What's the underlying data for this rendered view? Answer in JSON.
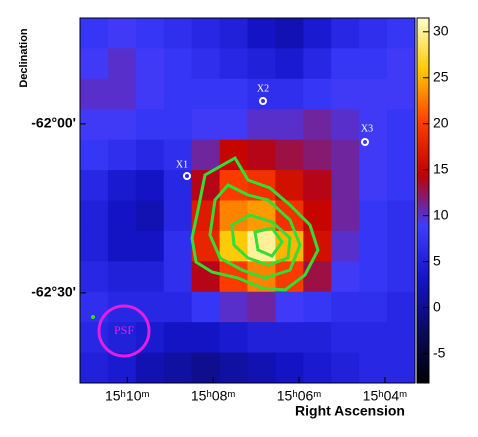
{
  "chart_data": {
    "type": "heatmap",
    "xlabel": "Right Ascension",
    "ylabel": "Declination",
    "xlim": [
      911.1,
      903.3
    ],
    "ylim": [
      -3701.2,
      -3766
    ],
    "xticks": [
      {
        "value": 910,
        "label": "15ʰ10ᵐ"
      },
      {
        "value": 908,
        "label": "15ʰ08ᵐ"
      },
      {
        "value": 906,
        "label": "15ʰ06ᵐ"
      },
      {
        "value": 904,
        "label": "15ʰ04ᵐ"
      }
    ],
    "yticks": [
      {
        "value": -3720,
        "label": "-62°00'"
      },
      {
        "value": -3750,
        "label": "-62°30'"
      }
    ],
    "clim": [
      -8.2,
      31.5
    ],
    "cticks": [
      -5,
      0,
      5,
      10,
      15,
      20,
      25,
      30
    ],
    "colormap": [
      "#000000",
      "#0a0a60",
      "#1414c8",
      "#3c3cff",
      "#c00000",
      "#ff3c00",
      "#ffc800",
      "#ffffd0"
    ],
    "z": [
      [
        8,
        9,
        8,
        7,
        6,
        5,
        3,
        2,
        4,
        6,
        7,
        8
      ],
      [
        9,
        10,
        9,
        8,
        7,
        6,
        5,
        4,
        6,
        8,
        8,
        9
      ],
      [
        10,
        10,
        9,
        8,
        8,
        8,
        7,
        7,
        8,
        9,
        9,
        9
      ],
      [
        9,
        9,
        8,
        8,
        9,
        9,
        10,
        10,
        11,
        10,
        9,
        8
      ],
      [
        8,
        7,
        6,
        7,
        11,
        15,
        14,
        13,
        12,
        11,
        9,
        8
      ],
      [
        6,
        4,
        3,
        6,
        14,
        20,
        19,
        16,
        14,
        11,
        9,
        8
      ],
      [
        5,
        3,
        2,
        6,
        17,
        23,
        24,
        19,
        15,
        11,
        8,
        7
      ],
      [
        5,
        3,
        3,
        7,
        18,
        26,
        30,
        25,
        16,
        10,
        8,
        7
      ],
      [
        6,
        5,
        5,
        7,
        14,
        20,
        23,
        20,
        13,
        9,
        8,
        7
      ],
      [
        7,
        6,
        6,
        6,
        8,
        10,
        11,
        9,
        8,
        7,
        7,
        6
      ],
      [
        6,
        5,
        4,
        3,
        3,
        4,
        5,
        5,
        5,
        6,
        6,
        6
      ],
      [
        5,
        4,
        2,
        1,
        0,
        1,
        2,
        3,
        4,
        5,
        6,
        6
      ]
    ],
    "annotations": [
      "X1",
      "X2",
      "X3",
      "PSF"
    ]
  }
}
